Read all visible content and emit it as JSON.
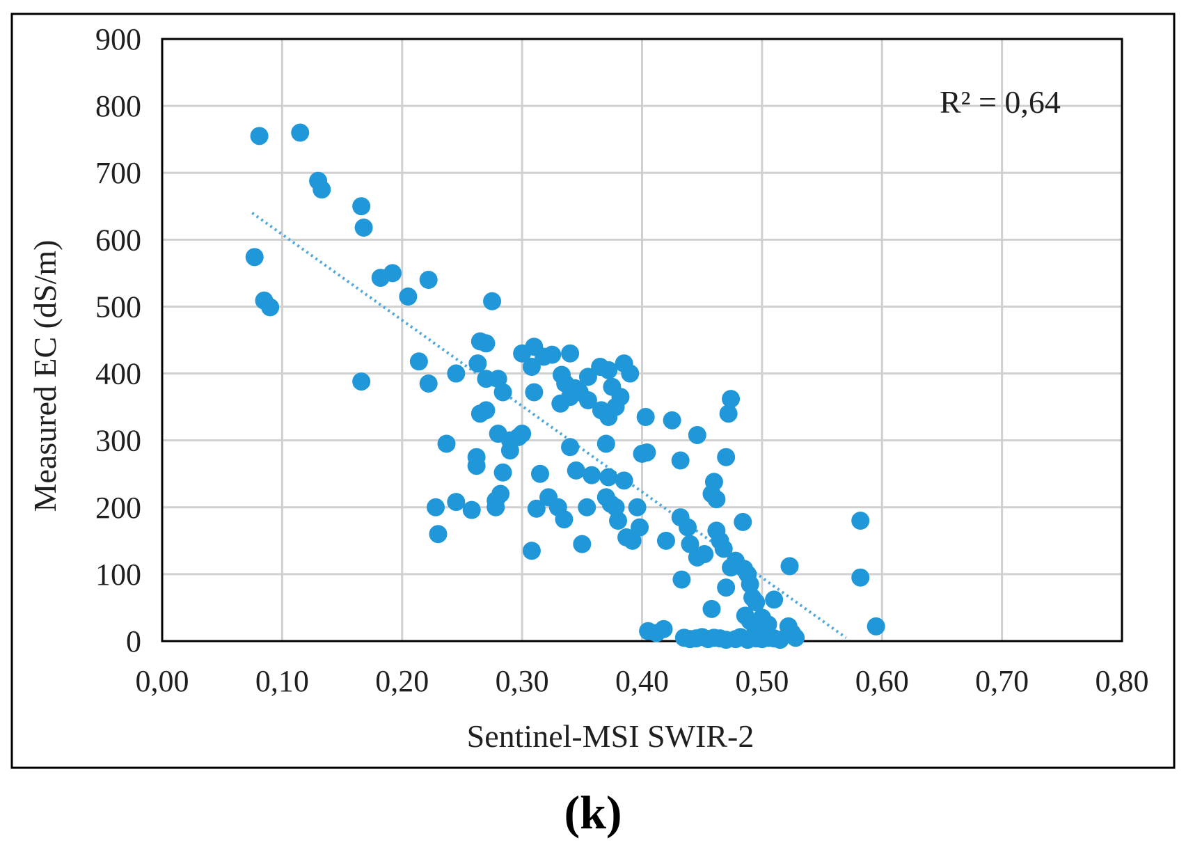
{
  "panel_label": "(k)",
  "colors": {
    "point": "#1f97d8",
    "trend": "#4fa8dc",
    "grid": "#d0d0d0",
    "frame": "#000000"
  },
  "chart_data": {
    "type": "scatter",
    "title": "",
    "xlabel": "Sentinel-MSI  SWIR-2",
    "ylabel": "Measured EC  (dS/m)",
    "annotation": "R² = 0,64",
    "xlim": [
      0.0,
      0.8
    ],
    "ylim": [
      0,
      900
    ],
    "xticks": [
      0.0,
      0.1,
      0.2,
      0.3,
      0.4,
      0.5,
      0.6,
      0.7,
      0.8
    ],
    "xtick_labels": [
      "0,00",
      "0,10",
      "0,20",
      "0,30",
      "0,40",
      "0,50",
      "0,60",
      "0,70",
      "0,80"
    ],
    "yticks": [
      0,
      100,
      200,
      300,
      400,
      500,
      600,
      700,
      800,
      900
    ],
    "ytick_labels": [
      "0",
      "100",
      "200",
      "300",
      "400",
      "500",
      "600",
      "700",
      "800",
      "900"
    ],
    "grid": true,
    "trendline": {
      "x": [
        0.075,
        0.57
      ],
      "y": [
        640,
        5
      ],
      "style": "dotted"
    },
    "series": [
      {
        "name": "samples",
        "points": [
          [
            0.081,
            755
          ],
          [
            0.115,
            760
          ],
          [
            0.13,
            688
          ],
          [
            0.133,
            675
          ],
          [
            0.166,
            650
          ],
          [
            0.168,
            618
          ],
          [
            0.077,
            574
          ],
          [
            0.085,
            509
          ],
          [
            0.09,
            499
          ],
          [
            0.182,
            543
          ],
          [
            0.192,
            550
          ],
          [
            0.205,
            515
          ],
          [
            0.222,
            540
          ],
          [
            0.166,
            388
          ],
          [
            0.214,
            418
          ],
          [
            0.222,
            385
          ],
          [
            0.245,
            400
          ],
          [
            0.275,
            508
          ],
          [
            0.265,
            448
          ],
          [
            0.27,
            445
          ],
          [
            0.263,
            415
          ],
          [
            0.27,
            392
          ],
          [
            0.28,
            392
          ],
          [
            0.284,
            372
          ],
          [
            0.265,
            340
          ],
          [
            0.27,
            345
          ],
          [
            0.237,
            295
          ],
          [
            0.262,
            275
          ],
          [
            0.262,
            262
          ],
          [
            0.228,
            200
          ],
          [
            0.245,
            208
          ],
          [
            0.258,
            196
          ],
          [
            0.23,
            160
          ],
          [
            0.278,
            210
          ],
          [
            0.282,
            220
          ],
          [
            0.278,
            200
          ],
          [
            0.284,
            252
          ],
          [
            0.29,
            285
          ],
          [
            0.28,
            310
          ],
          [
            0.29,
            300
          ],
          [
            0.297,
            305
          ],
          [
            0.3,
            310
          ],
          [
            0.3,
            430
          ],
          [
            0.31,
            440
          ],
          [
            0.308,
            410
          ],
          [
            0.31,
            372
          ],
          [
            0.318,
            425
          ],
          [
            0.325,
            428
          ],
          [
            0.333,
            398
          ],
          [
            0.34,
            430
          ],
          [
            0.336,
            385
          ],
          [
            0.344,
            378
          ],
          [
            0.348,
            372
          ],
          [
            0.355,
            395
          ],
          [
            0.34,
            365
          ],
          [
            0.332,
            355
          ],
          [
            0.355,
            360
          ],
          [
            0.365,
            410
          ],
          [
            0.372,
            405
          ],
          [
            0.375,
            380
          ],
          [
            0.366,
            345
          ],
          [
            0.372,
            335
          ],
          [
            0.385,
            415
          ],
          [
            0.39,
            400
          ],
          [
            0.382,
            365
          ],
          [
            0.378,
            350
          ],
          [
            0.308,
            135
          ],
          [
            0.312,
            198
          ],
          [
            0.315,
            250
          ],
          [
            0.322,
            215
          ],
          [
            0.33,
            200
          ],
          [
            0.335,
            182
          ],
          [
            0.34,
            290
          ],
          [
            0.345,
            255
          ],
          [
            0.35,
            145
          ],
          [
            0.354,
            200
          ],
          [
            0.358,
            248
          ],
          [
            0.37,
            295
          ],
          [
            0.372,
            245
          ],
          [
            0.37,
            215
          ],
          [
            0.374,
            205
          ],
          [
            0.378,
            200
          ],
          [
            0.38,
            180
          ],
          [
            0.385,
            240
          ],
          [
            0.387,
            155
          ],
          [
            0.392,
            150
          ],
          [
            0.396,
            200
          ],
          [
            0.398,
            170
          ],
          [
            0.4,
            280
          ],
          [
            0.404,
            282
          ],
          [
            0.403,
            335
          ],
          [
            0.42,
            150
          ],
          [
            0.425,
            330
          ],
          [
            0.432,
            270
          ],
          [
            0.432,
            185
          ],
          [
            0.438,
            170
          ],
          [
            0.44,
            145
          ],
          [
            0.446,
            308
          ],
          [
            0.433,
            92
          ],
          [
            0.446,
            125
          ],
          [
            0.452,
            130
          ],
          [
            0.458,
            220
          ],
          [
            0.46,
            238
          ],
          [
            0.462,
            212
          ],
          [
            0.462,
            165
          ],
          [
            0.465,
            150
          ],
          [
            0.468,
            138
          ],
          [
            0.47,
            80
          ],
          [
            0.474,
            110
          ],
          [
            0.478,
            120
          ],
          [
            0.47,
            275
          ],
          [
            0.472,
            340
          ],
          [
            0.474,
            362
          ],
          [
            0.484,
            178
          ],
          [
            0.458,
            48
          ],
          [
            0.485,
            108
          ],
          [
            0.488,
            100
          ],
          [
            0.49,
            85
          ],
          [
            0.492,
            65
          ],
          [
            0.495,
            58
          ],
          [
            0.486,
            38
          ],
          [
            0.49,
            30
          ],
          [
            0.494,
            22
          ],
          [
            0.498,
            15
          ],
          [
            0.5,
            35
          ],
          [
            0.505,
            25
          ],
          [
            0.51,
            62
          ],
          [
            0.523,
            112
          ],
          [
            0.522,
            22
          ],
          [
            0.525,
            12
          ],
          [
            0.405,
            15
          ],
          [
            0.412,
            12
          ],
          [
            0.418,
            18
          ],
          [
            0.435,
            5
          ],
          [
            0.44,
            3
          ],
          [
            0.445,
            4
          ],
          [
            0.45,
            6
          ],
          [
            0.455,
            3
          ],
          [
            0.46,
            5
          ],
          [
            0.465,
            4
          ],
          [
            0.47,
            2
          ],
          [
            0.478,
            3
          ],
          [
            0.482,
            6
          ],
          [
            0.488,
            2
          ],
          [
            0.495,
            4
          ],
          [
            0.5,
            3
          ],
          [
            0.505,
            5
          ],
          [
            0.51,
            4
          ],
          [
            0.515,
            2
          ],
          [
            0.528,
            5
          ],
          [
            0.582,
            180
          ],
          [
            0.582,
            95
          ],
          [
            0.595,
            22
          ]
        ]
      }
    ]
  }
}
